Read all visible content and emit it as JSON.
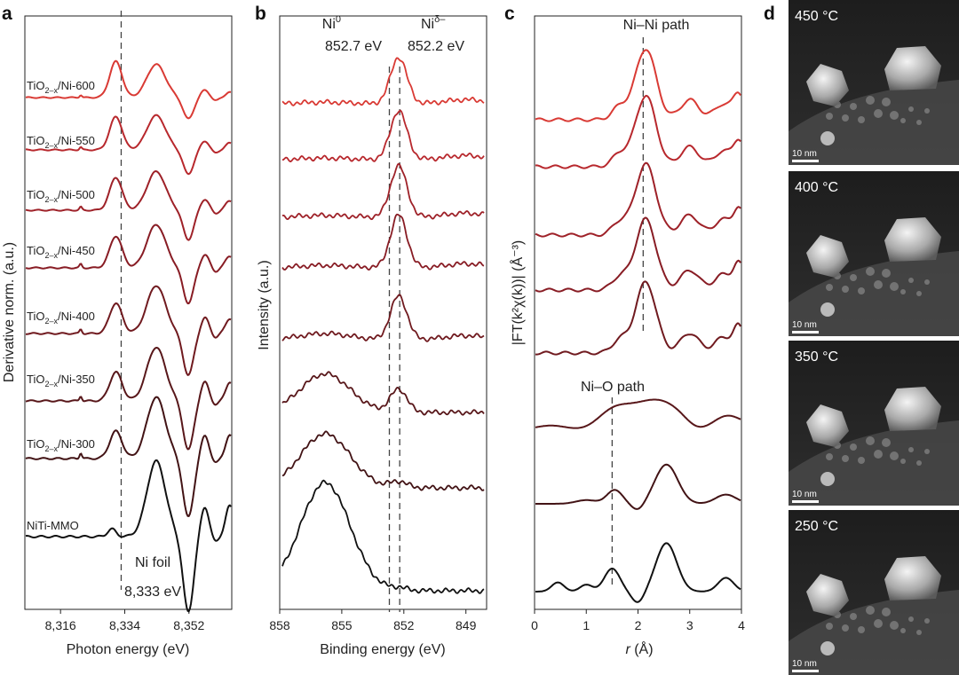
{
  "panel_labels": [
    "a",
    "b",
    "c",
    "d"
  ],
  "chart_data": [
    {
      "type": "line",
      "panel": "a",
      "xlabel": "Photon energy (eV)",
      "ylabel": "Derivative norm. (a.u.)",
      "xlim": [
        8306,
        8364
      ],
      "xticks": [
        8316,
        8334,
        8352
      ],
      "xtick_labels": [
        "8,316",
        "8,334",
        "8,352"
      ],
      "reference_line_x": 8333,
      "annotations": [
        "Ni foil",
        "8,333 eV"
      ],
      "series": [
        {
          "name": "TiO2-x/Ni-600",
          "label_main": "TiO",
          "label_sub": "2–x",
          "label_tail": "/Ni-600",
          "color": "#d93a34"
        },
        {
          "name": "TiO2-x/Ni-550",
          "label_main": "TiO",
          "label_sub": "2–x",
          "label_tail": "/Ni-550",
          "color": "#b8282d"
        },
        {
          "name": "TiO2-x/Ni-500",
          "label_main": "TiO",
          "label_sub": "2–x",
          "label_tail": "/Ni-500",
          "color": "#9e2128"
        },
        {
          "name": "TiO2-x/Ni-450",
          "label_main": "TiO",
          "label_sub": "2–x",
          "label_tail": "/Ni-450",
          "color": "#881c24"
        },
        {
          "name": "TiO2-x/Ni-400",
          "label_main": "TiO",
          "label_sub": "2–x",
          "label_tail": "/Ni-400",
          "color": "#701a1f"
        },
        {
          "name": "TiO2-x/Ni-350",
          "label_main": "TiO",
          "label_sub": "2–x",
          "label_tail": "/Ni-350",
          "color": "#58171a"
        },
        {
          "name": "TiO2-x/Ni-300",
          "label_main": "TiO",
          "label_sub": "2–x",
          "label_tail": "/Ni-300",
          "color": "#421315"
        },
        {
          "name": "NiTi-MMO",
          "label_main": "NiTi-MMO",
          "label_sub": "",
          "label_tail": "",
          "color": "#111111"
        }
      ]
    },
    {
      "type": "line",
      "panel": "b",
      "xlabel": "Binding energy (eV)",
      "ylabel": "Intensity (a.u.)",
      "xlim": [
        858,
        848
      ],
      "xticks": [
        858,
        855,
        852,
        849
      ],
      "xtick_labels": [
        "858",
        "855",
        "852",
        "849"
      ],
      "reference_lines_x": [
        852.7,
        852.2
      ],
      "annotations": {
        "ni0_main": "Ni",
        "ni0_sup": "0",
        "ni0_value": "852.7 eV",
        "nid_main": "Ni",
        "nid_sup": "δ–",
        "nid_value": "852.2 eV"
      },
      "series_count": 8
    },
    {
      "type": "line",
      "panel": "c",
      "xlabel_italic": "r",
      "xlabel_unit": " (Å)",
      "ylabel": "|FT(k²χ(k))| (Å⁻³)",
      "xlim": [
        0,
        4
      ],
      "xticks": [
        0,
        1,
        2,
        3,
        4
      ],
      "xtick_labels": [
        "0",
        "1",
        "2",
        "3",
        "4"
      ],
      "reference_lines_x": {
        "ni_ni": 2.1,
        "ni_o": 1.5
      },
      "annotations": {
        "ni_ni": "Ni–Ni path",
        "ni_o": "Ni–O path"
      },
      "series_count": 8
    }
  ],
  "sem_panels": [
    {
      "temperature": "450 °C",
      "scale": "10 nm"
    },
    {
      "temperature": "400 °C",
      "scale": "10 nm"
    },
    {
      "temperature": "350 °C",
      "scale": "10 nm"
    },
    {
      "temperature": "250 °C",
      "scale": "10 nm"
    }
  ]
}
